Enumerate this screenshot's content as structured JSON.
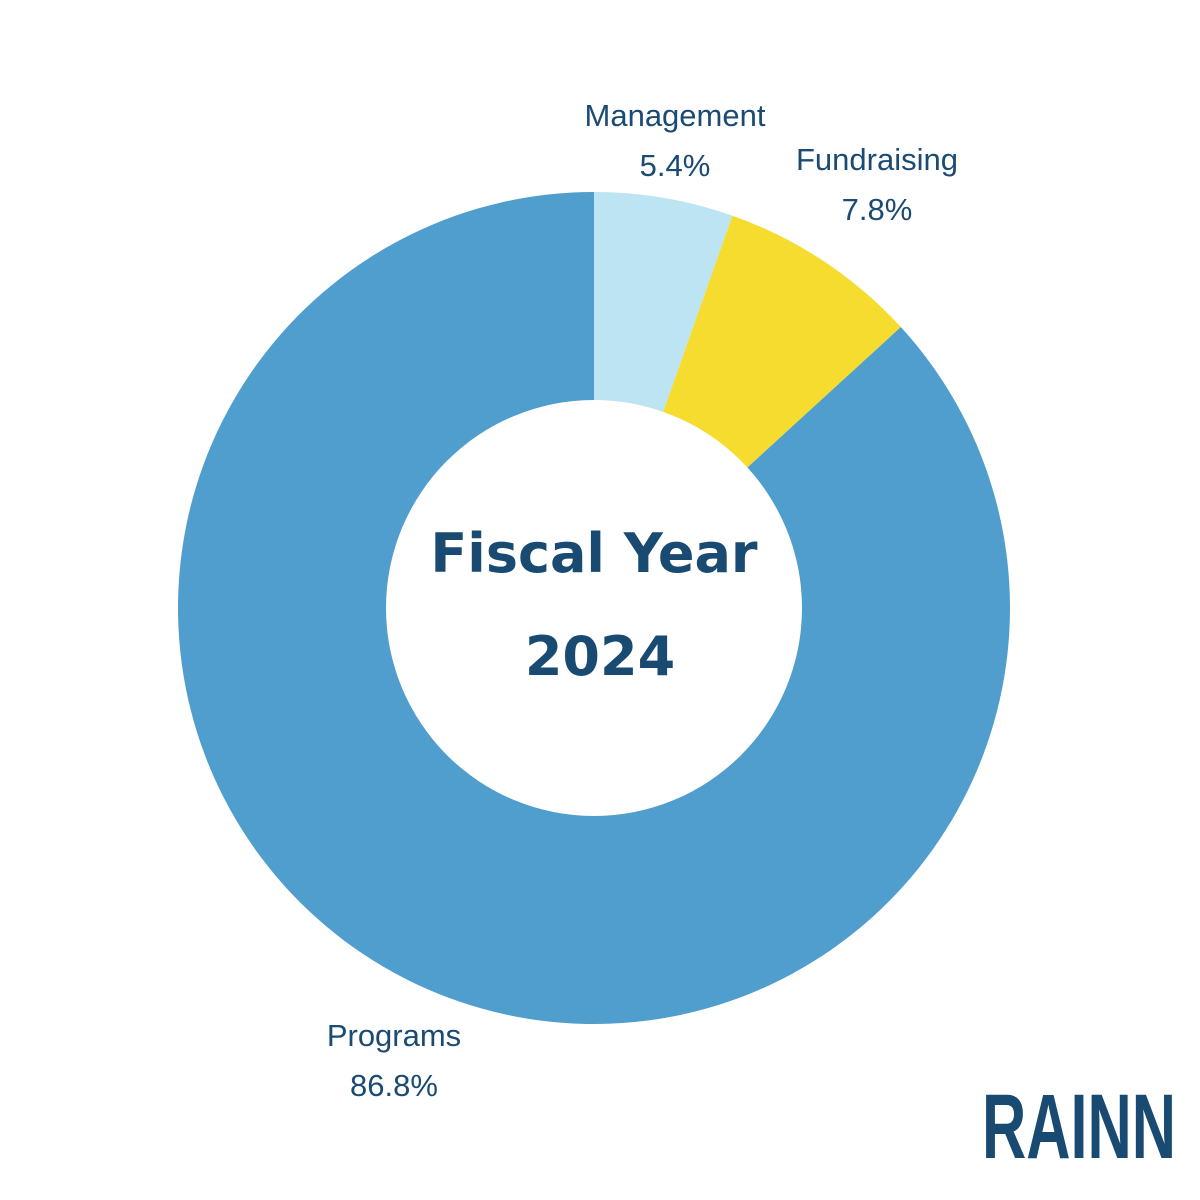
{
  "chart_data": {
    "type": "pie",
    "title": "Fiscal Year 2024",
    "title_lines": [
      "Fiscal Year",
      "2024"
    ],
    "donut": true,
    "start_angle_deg": 0,
    "direction": "clockwise",
    "slices": [
      {
        "name": "Management",
        "value": 5.4,
        "label": "5.4%",
        "color": "#bde4f2"
      },
      {
        "name": "Fundraising",
        "value": 7.8,
        "label": "7.8%",
        "color": "#f6dc2e"
      },
      {
        "name": "Programs",
        "value": 86.8,
        "label": "86.8%",
        "color": "#509ecd"
      }
    ]
  },
  "logo": {
    "text": "RAINN"
  },
  "colors": {
    "text": "#1b4a73",
    "background": "#ffffff"
  }
}
